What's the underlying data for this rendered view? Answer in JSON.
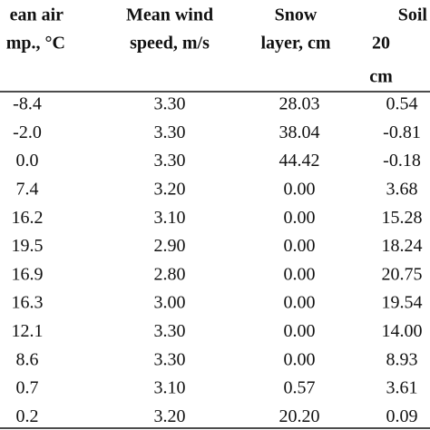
{
  "table": {
    "header": [
      [
        "ean air",
        "mp., °C"
      ],
      [
        "Mean wind",
        "speed, m/s"
      ],
      [
        "Snow",
        "layer, cm"
      ],
      [
        "Soil",
        "20",
        "cm"
      ]
    ],
    "rows": [
      [
        "-8.4",
        "3.30",
        "28.03",
        "0.54"
      ],
      [
        "-2.0",
        "3.30",
        "38.04",
        "-0.81"
      ],
      [
        "0.0",
        "3.30",
        "44.42",
        "-0.18"
      ],
      [
        "7.4",
        "3.20",
        "0.00",
        "3.68"
      ],
      [
        "16.2",
        "3.10",
        "0.00",
        "15.28"
      ],
      [
        "19.5",
        "2.90",
        "0.00",
        "18.24"
      ],
      [
        "16.9",
        "2.80",
        "0.00",
        "20.75"
      ],
      [
        "16.3",
        "3.00",
        "0.00",
        "19.54"
      ],
      [
        "12.1",
        "3.30",
        "0.00",
        "14.00"
      ],
      [
        "8.6",
        "3.30",
        "0.00",
        "8.93"
      ],
      [
        "0.7",
        "3.10",
        "0.57",
        "3.61"
      ],
      [
        "0.2",
        "3.20",
        "20.20",
        "0.09"
      ]
    ]
  }
}
